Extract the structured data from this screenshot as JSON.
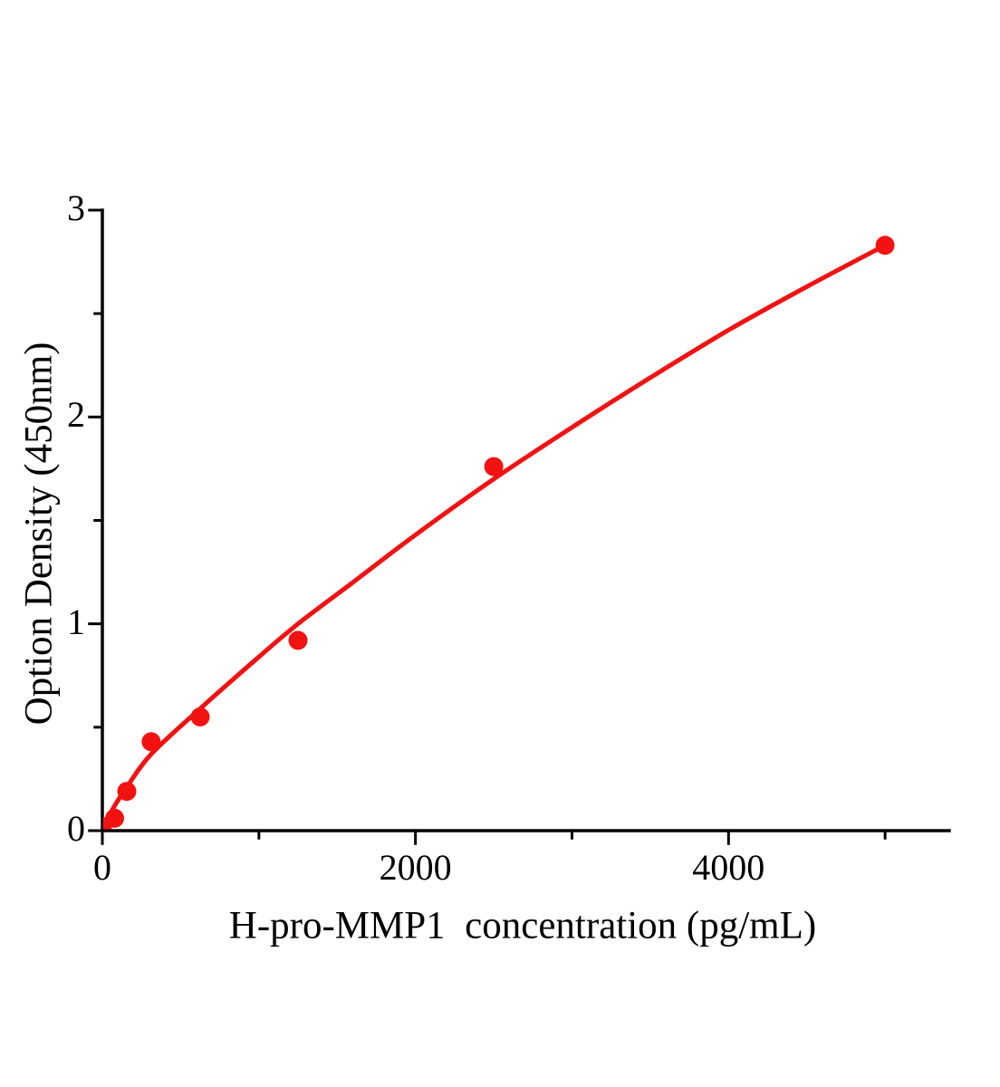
{
  "chart_data": {
    "type": "scatter",
    "title": "",
    "xlabel": "H-pro-MMP1  concentration (pg/mL)",
    "ylabel": "Option Density (450nm)",
    "xlim": [
      0,
      5410
    ],
    "ylim": [
      0,
      3
    ],
    "grid": false,
    "legend": null,
    "x_major_ticks": [
      0,
      2000,
      4000
    ],
    "x_minor_ticks": [
      1000,
      3000,
      5000
    ],
    "y_major_ticks": [
      0,
      1,
      2,
      3
    ],
    "y_minor_ticks": [
      0.5,
      1.5,
      2.5
    ],
    "points": [
      {
        "x": 0,
        "y": 0.02
      },
      {
        "x": 78,
        "y": 0.06
      },
      {
        "x": 156,
        "y": 0.19
      },
      {
        "x": 312,
        "y": 0.43
      },
      {
        "x": 625,
        "y": 0.55
      },
      {
        "x": 1250,
        "y": 0.92
      },
      {
        "x": 2500,
        "y": 1.76
      },
      {
        "x": 5000,
        "y": 2.83
      }
    ],
    "fit_curve": {
      "x": [
        0,
        30,
        78,
        156,
        312,
        625,
        1000,
        1250,
        1600,
        2000,
        2500,
        3000,
        3500,
        4000,
        4500,
        5000
      ],
      "y": [
        0,
        0.05,
        0.12,
        0.21,
        0.37,
        0.59,
        0.84,
        1.0,
        1.2,
        1.43,
        1.7,
        1.95,
        2.19,
        2.42,
        2.63,
        2.83
      ]
    },
    "colors": {
      "series": "#f21212",
      "axis": "#000000",
      "background": "#ffffff"
    }
  }
}
